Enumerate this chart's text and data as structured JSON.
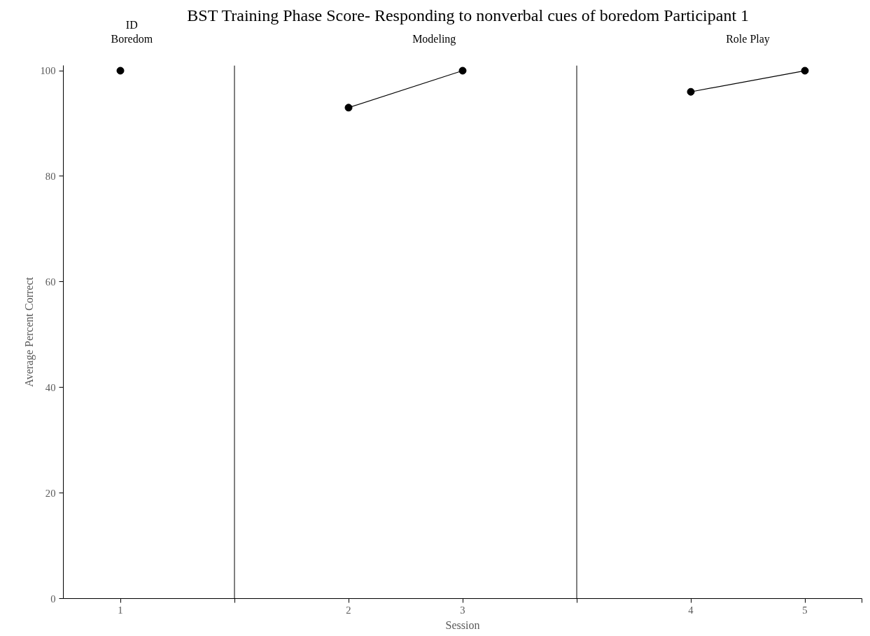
{
  "chart_data": {
    "type": "line",
    "title": "BST Training Phase Score- Responding to nonverbal cues of boredom Participant 1",
    "xlabel": "Session",
    "ylabel": "Average Percent Correct",
    "categories": [
      "1",
      null,
      null,
      null,
      "2",
      null,
      "3",
      null,
      null,
      null,
      "4",
      null,
      "5"
    ],
    "series": [
      {
        "color": "#000000",
        "values": [
          100,
          null,
          null,
          null,
          93,
          null,
          100,
          null,
          null,
          null,
          96,
          null,
          100
        ]
      }
    ],
    "ylim": [
      0,
      101
    ],
    "yticks": [
      0,
      20,
      40,
      60,
      80,
      100
    ],
    "annotations": [
      "ID Boredom",
      "Modeling",
      "Role Play"
    ],
    "marker": "circle",
    "line_style": "solid"
  }
}
